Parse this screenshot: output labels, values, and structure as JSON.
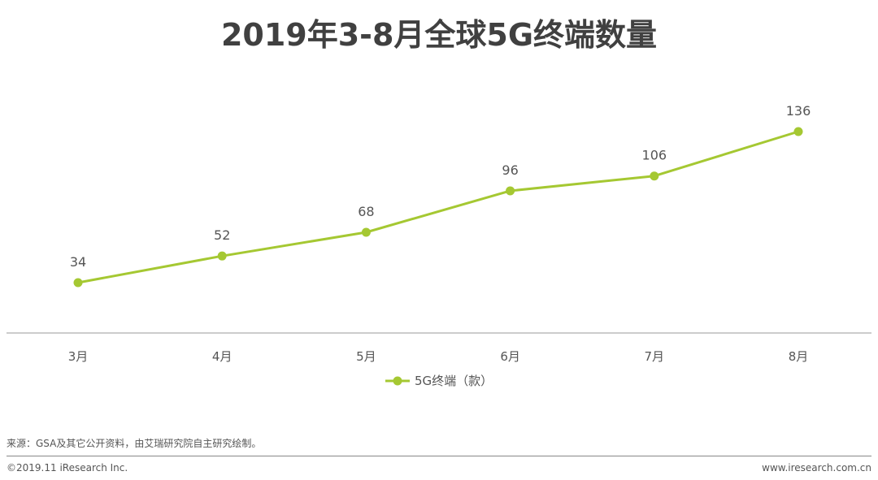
{
  "header": {
    "title": "2019年3-8月全球5G终端数量"
  },
  "chart_data": {
    "type": "line",
    "title": "2019年3-8月全球5G终端数量",
    "categories": [
      "3月",
      "4月",
      "5月",
      "6月",
      "7月",
      "8月"
    ],
    "series": [
      {
        "name": "5G终端（款）",
        "values": [
          34,
          52,
          68,
          96,
          106,
          136
        ],
        "color": "#a5c832"
      }
    ],
    "data_labels": [
      "34",
      "52",
      "68",
      "96",
      "106",
      "136"
    ],
    "ylim": [
      0,
      170
    ],
    "grid": false,
    "legend": "bottom-center",
    "xlabel": "",
    "ylabel": ""
  },
  "footer": {
    "source": "来源：GSA及其它公开资料，由艾瑞研究院自主研究绘制。",
    "copyright": "©2019.11 iResearch Inc.",
    "website": "www.iresearch.com.cn"
  }
}
